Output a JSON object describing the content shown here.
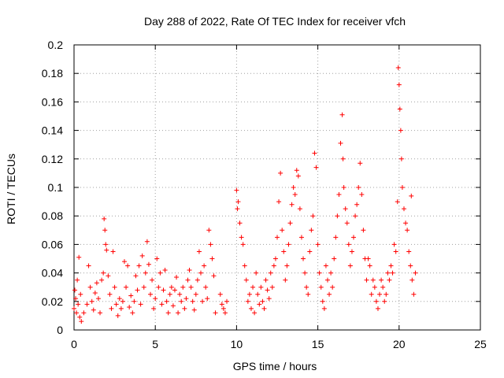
{
  "chart_data": {
    "type": "scatter",
    "title": "Day 288 of 2022, Rate Of TEC Index for receiver vfch",
    "xlabel": "GPS time / hours",
    "ylabel": "ROTI / TECUs",
    "xlim": [
      0,
      25
    ],
    "ylim": [
      0,
      0.2
    ],
    "xticks": [
      0,
      5,
      10,
      15,
      20,
      25
    ],
    "yticks": [
      0,
      0.02,
      0.04,
      0.06,
      0.08,
      0.1,
      0.12,
      0.14,
      0.16,
      0.18,
      0.2
    ],
    "grid": true,
    "marker": "+",
    "color": "#ff0000",
    "series": [
      {
        "points": [
          [
            0.0,
            0.015
          ],
          [
            0.05,
            0.028
          ],
          [
            0.1,
            0.022
          ],
          [
            0.15,
            0.012
          ],
          [
            0.2,
            0.035
          ],
          [
            0.25,
            0.018
          ],
          [
            0.3,
            0.051
          ],
          [
            0.35,
            0.009
          ],
          [
            0.4,
            0.025
          ],
          [
            0.45,
            0.006
          ],
          [
            0.6,
            0.012
          ],
          [
            0.8,
            0.018
          ],
          [
            0.9,
            0.045
          ],
          [
            1.0,
            0.03
          ],
          [
            1.1,
            0.02
          ],
          [
            1.2,
            0.014
          ],
          [
            1.3,
            0.026
          ],
          [
            1.4,
            0.033
          ],
          [
            1.5,
            0.022
          ],
          [
            1.6,
            0.012
          ],
          [
            1.7,
            0.035
          ],
          [
            1.8,
            0.04
          ],
          [
            1.85,
            0.078
          ],
          [
            1.9,
            0.07
          ],
          [
            1.95,
            0.06
          ],
          [
            2.0,
            0.056
          ],
          [
            2.1,
            0.038
          ],
          [
            2.2,
            0.025
          ],
          [
            2.3,
            0.015
          ],
          [
            2.4,
            0.055
          ],
          [
            2.5,
            0.03
          ],
          [
            2.6,
            0.018
          ],
          [
            2.7,
            0.01
          ],
          [
            2.8,
            0.022
          ],
          [
            2.9,
            0.015
          ],
          [
            3.0,
            0.02
          ],
          [
            3.1,
            0.048
          ],
          [
            3.2,
            0.03
          ],
          [
            3.3,
            0.045
          ],
          [
            3.4,
            0.016
          ],
          [
            3.5,
            0.024
          ],
          [
            3.6,
            0.012
          ],
          [
            3.7,
            0.02
          ],
          [
            3.8,
            0.038
          ],
          [
            3.9,
            0.028
          ],
          [
            4.0,
            0.045
          ],
          [
            4.1,
            0.018
          ],
          [
            4.2,
            0.052
          ],
          [
            4.3,
            0.03
          ],
          [
            4.4,
            0.04
          ],
          [
            4.5,
            0.062
          ],
          [
            4.6,
            0.046
          ],
          [
            4.7,
            0.025
          ],
          [
            4.8,
            0.035
          ],
          [
            4.9,
            0.015
          ],
          [
            5.0,
            0.022
          ],
          [
            5.1,
            0.05
          ],
          [
            5.2,
            0.03
          ],
          [
            5.3,
            0.04
          ],
          [
            5.4,
            0.018
          ],
          [
            5.5,
            0.028
          ],
          [
            5.6,
            0.042
          ],
          [
            5.7,
            0.02
          ],
          [
            5.8,
            0.012
          ],
          [
            5.9,
            0.025
          ],
          [
            6.0,
            0.03
          ],
          [
            6.1,
            0.017
          ],
          [
            6.2,
            0.028
          ],
          [
            6.3,
            0.037
          ],
          [
            6.4,
            0.012
          ],
          [
            6.5,
            0.025
          ],
          [
            6.6,
            0.02
          ],
          [
            6.7,
            0.03
          ],
          [
            6.8,
            0.015
          ],
          [
            6.9,
            0.022
          ],
          [
            7.0,
            0.035
          ],
          [
            7.1,
            0.042
          ],
          [
            7.2,
            0.03
          ],
          [
            7.3,
            0.02
          ],
          [
            7.4,
            0.014
          ],
          [
            7.5,
            0.025
          ],
          [
            7.6,
            0.035
          ],
          [
            7.7,
            0.055
          ],
          [
            7.8,
            0.04
          ],
          [
            7.9,
            0.02
          ],
          [
            8.0,
            0.045
          ],
          [
            8.1,
            0.03
          ],
          [
            8.2,
            0.022
          ],
          [
            8.3,
            0.07
          ],
          [
            8.4,
            0.06
          ],
          [
            8.5,
            0.05
          ],
          [
            8.6,
            0.038
          ],
          [
            8.7,
            0.012
          ],
          [
            9.0,
            0.025
          ],
          [
            9.1,
            0.018
          ],
          [
            9.2,
            0.015
          ],
          [
            9.3,
            0.012
          ],
          [
            9.4,
            0.02
          ],
          [
            10.0,
            0.098
          ],
          [
            10.05,
            0.085
          ],
          [
            10.1,
            0.09
          ],
          [
            10.2,
            0.075
          ],
          [
            10.3,
            0.065
          ],
          [
            10.4,
            0.06
          ],
          [
            10.5,
            0.045
          ],
          [
            10.6,
            0.035
          ],
          [
            10.7,
            0.02
          ],
          [
            10.8,
            0.025
          ],
          [
            10.9,
            0.015
          ],
          [
            11.0,
            0.03
          ],
          [
            11.1,
            0.012
          ],
          [
            11.2,
            0.04
          ],
          [
            11.3,
            0.025
          ],
          [
            11.4,
            0.018
          ],
          [
            11.5,
            0.03
          ],
          [
            11.6,
            0.02
          ],
          [
            11.7,
            0.015
          ],
          [
            11.8,
            0.035
          ],
          [
            11.9,
            0.028
          ],
          [
            12.0,
            0.022
          ],
          [
            12.1,
            0.04
          ],
          [
            12.2,
            0.03
          ],
          [
            12.3,
            0.045
          ],
          [
            12.4,
            0.05
          ],
          [
            12.5,
            0.065
          ],
          [
            12.6,
            0.09
          ],
          [
            12.7,
            0.11
          ],
          [
            12.8,
            0.07
          ],
          [
            12.9,
            0.055
          ],
          [
            13.0,
            0.035
          ],
          [
            13.1,
            0.045
          ],
          [
            13.2,
            0.06
          ],
          [
            13.3,
            0.075
          ],
          [
            13.4,
            0.088
          ],
          [
            13.5,
            0.1
          ],
          [
            13.6,
            0.095
          ],
          [
            13.7,
            0.112
          ],
          [
            13.8,
            0.108
          ],
          [
            13.9,
            0.085
          ],
          [
            14.0,
            0.065
          ],
          [
            14.1,
            0.05
          ],
          [
            14.2,
            0.04
          ],
          [
            14.3,
            0.03
          ],
          [
            14.4,
            0.025
          ],
          [
            14.5,
            0.055
          ],
          [
            14.6,
            0.07
          ],
          [
            14.7,
            0.08
          ],
          [
            14.8,
            0.124
          ],
          [
            14.9,
            0.114
          ],
          [
            15.0,
            0.06
          ],
          [
            15.1,
            0.04
          ],
          [
            15.2,
            0.03
          ],
          [
            15.3,
            0.02
          ],
          [
            15.4,
            0.015
          ],
          [
            15.5,
            0.045
          ],
          [
            15.6,
            0.035
          ],
          [
            15.7,
            0.025
          ],
          [
            15.8,
            0.04
          ],
          [
            15.9,
            0.03
          ],
          [
            16.0,
            0.05
          ],
          [
            16.1,
            0.065
          ],
          [
            16.2,
            0.08
          ],
          [
            16.3,
            0.095
          ],
          [
            16.4,
            0.131
          ],
          [
            16.5,
            0.151
          ],
          [
            16.55,
            0.12
          ],
          [
            16.6,
            0.1
          ],
          [
            16.7,
            0.085
          ],
          [
            16.8,
            0.075
          ],
          [
            16.9,
            0.06
          ],
          [
            17.0,
            0.045
          ],
          [
            17.1,
            0.055
          ],
          [
            17.2,
            0.065
          ],
          [
            17.3,
            0.08
          ],
          [
            17.4,
            0.088
          ],
          [
            17.5,
            0.1
          ],
          [
            17.6,
            0.117
          ],
          [
            17.7,
            0.095
          ],
          [
            17.8,
            0.07
          ],
          [
            17.9,
            0.05
          ],
          [
            18.0,
            0.035
          ],
          [
            18.1,
            0.05
          ],
          [
            18.2,
            0.045
          ],
          [
            18.3,
            0.025
          ],
          [
            18.4,
            0.035
          ],
          [
            18.5,
            0.03
          ],
          [
            18.6,
            0.02
          ],
          [
            18.7,
            0.015
          ],
          [
            18.8,
            0.025
          ],
          [
            18.9,
            0.035
          ],
          [
            19.0,
            0.03
          ],
          [
            19.1,
            0.02
          ],
          [
            19.2,
            0.025
          ],
          [
            19.3,
            0.04
          ],
          [
            19.4,
            0.035
          ],
          [
            19.5,
            0.045
          ],
          [
            19.6,
            0.04
          ],
          [
            19.7,
            0.06
          ],
          [
            19.8,
            0.055
          ],
          [
            19.9,
            0.09
          ],
          [
            19.95,
            0.184
          ],
          [
            20.0,
            0.172
          ],
          [
            20.05,
            0.155
          ],
          [
            20.1,
            0.14
          ],
          [
            20.15,
            0.12
          ],
          [
            20.2,
            0.1
          ],
          [
            20.3,
            0.085
          ],
          [
            20.4,
            0.075
          ],
          [
            20.5,
            0.07
          ],
          [
            20.6,
            0.055
          ],
          [
            20.7,
            0.045
          ],
          [
            20.75,
            0.094
          ],
          [
            20.8,
            0.035
          ],
          [
            20.9,
            0.025
          ],
          [
            21.0,
            0.04
          ]
        ]
      }
    ]
  }
}
